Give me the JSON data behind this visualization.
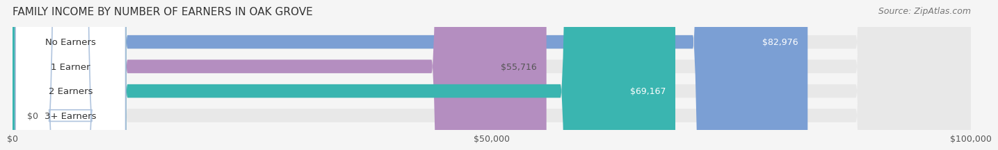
{
  "title": "FAMILY INCOME BY NUMBER OF EARNERS IN OAK GROVE",
  "source": "Source: ZipAtlas.com",
  "categories": [
    "No Earners",
    "1 Earner",
    "2 Earners",
    "3+ Earners"
  ],
  "values": [
    82976,
    55716,
    69167,
    0
  ],
  "labels": [
    "$82,976",
    "$55,716",
    "$69,167",
    "$0"
  ],
  "bar_colors": [
    "#7b9fd4",
    "#b48ec0",
    "#3ab5b0",
    "#b0c4de"
  ],
  "bar_colors_light": [
    "#a8c4e8",
    "#cba8d8",
    "#5dd0cb",
    "#d0d8f0"
  ],
  "label_colors": [
    "#ffffff",
    "#555555",
    "#ffffff",
    "#555555"
  ],
  "xlim": [
    0,
    100000
  ],
  "xticks": [
    0,
    50000,
    100000
  ],
  "xticklabels": [
    "$0",
    "$50,000",
    "$100,000"
  ],
  "title_fontsize": 11,
  "source_fontsize": 9,
  "label_fontsize": 10,
  "bar_height": 0.55,
  "background_color": "#f5f5f5",
  "bar_bg_color": "#e8e8e8"
}
